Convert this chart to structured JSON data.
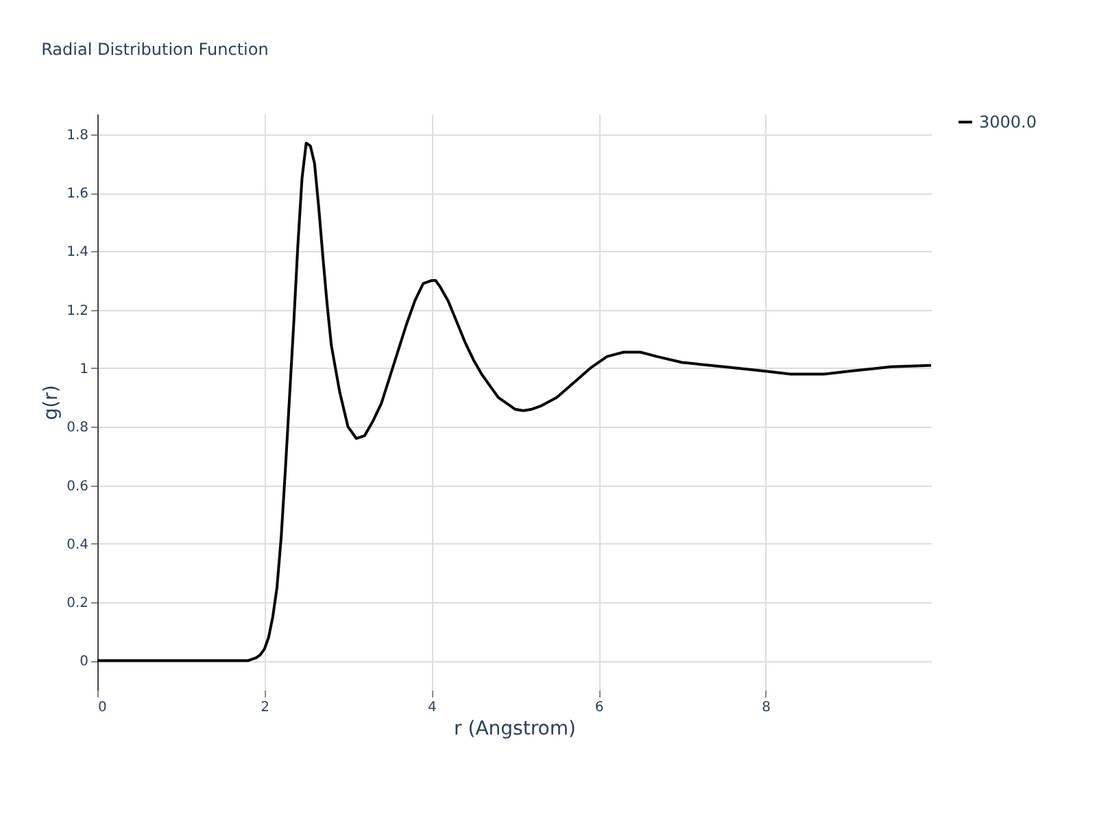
{
  "chart_data": {
    "type": "line",
    "title": "Radial Distribution Function",
    "xlabel": "r (Angstrom)",
    "ylabel": "g(r)",
    "xlim": [
      0,
      9.98
    ],
    "ylim": [
      -0.1,
      1.87
    ],
    "xticks": [
      0,
      2,
      4,
      6,
      8
    ],
    "yticks": [
      0,
      0.2,
      0.4,
      0.6,
      0.8,
      1,
      1.2,
      1.4,
      1.6,
      1.8
    ],
    "grid": true,
    "legend": "top right",
    "marker": "none",
    "line_style": "solid",
    "series": [
      {
        "name": "3000.0",
        "color": "#000000",
        "x": [
          0,
          1.0,
          1.8,
          1.9,
          1.95,
          2.0,
          2.05,
          2.1,
          2.15,
          2.2,
          2.25,
          2.3,
          2.35,
          2.4,
          2.45,
          2.5,
          2.55,
          2.6,
          2.65,
          2.7,
          2.75,
          2.8,
          2.9,
          3.0,
          3.05,
          3.1,
          3.2,
          3.3,
          3.4,
          3.5,
          3.6,
          3.7,
          3.8,
          3.9,
          4.0,
          4.05,
          4.1,
          4.2,
          4.3,
          4.4,
          4.5,
          4.6,
          4.7,
          4.8,
          4.9,
          5.0,
          5.1,
          5.2,
          5.3,
          5.5,
          5.7,
          5.9,
          6.1,
          6.3,
          6.5,
          6.7,
          7.0,
          7.5,
          8.0,
          8.3,
          8.7,
          9.0,
          9.5,
          9.98
        ],
        "values": [
          0,
          0,
          0,
          0.01,
          0.02,
          0.04,
          0.08,
          0.15,
          0.25,
          0.42,
          0.65,
          0.9,
          1.15,
          1.42,
          1.65,
          1.77,
          1.76,
          1.7,
          1.55,
          1.38,
          1.22,
          1.08,
          0.92,
          0.8,
          0.78,
          0.76,
          0.77,
          0.82,
          0.88,
          0.97,
          1.06,
          1.15,
          1.23,
          1.29,
          1.3,
          1.3,
          1.28,
          1.23,
          1.16,
          1.09,
          1.03,
          0.98,
          0.94,
          0.9,
          0.88,
          0.86,
          0.855,
          0.86,
          0.87,
          0.9,
          0.95,
          1.0,
          1.04,
          1.055,
          1.055,
          1.04,
          1.02,
          1.005,
          0.99,
          0.98,
          0.98,
          0.99,
          1.005,
          1.01
        ]
      }
    ]
  }
}
